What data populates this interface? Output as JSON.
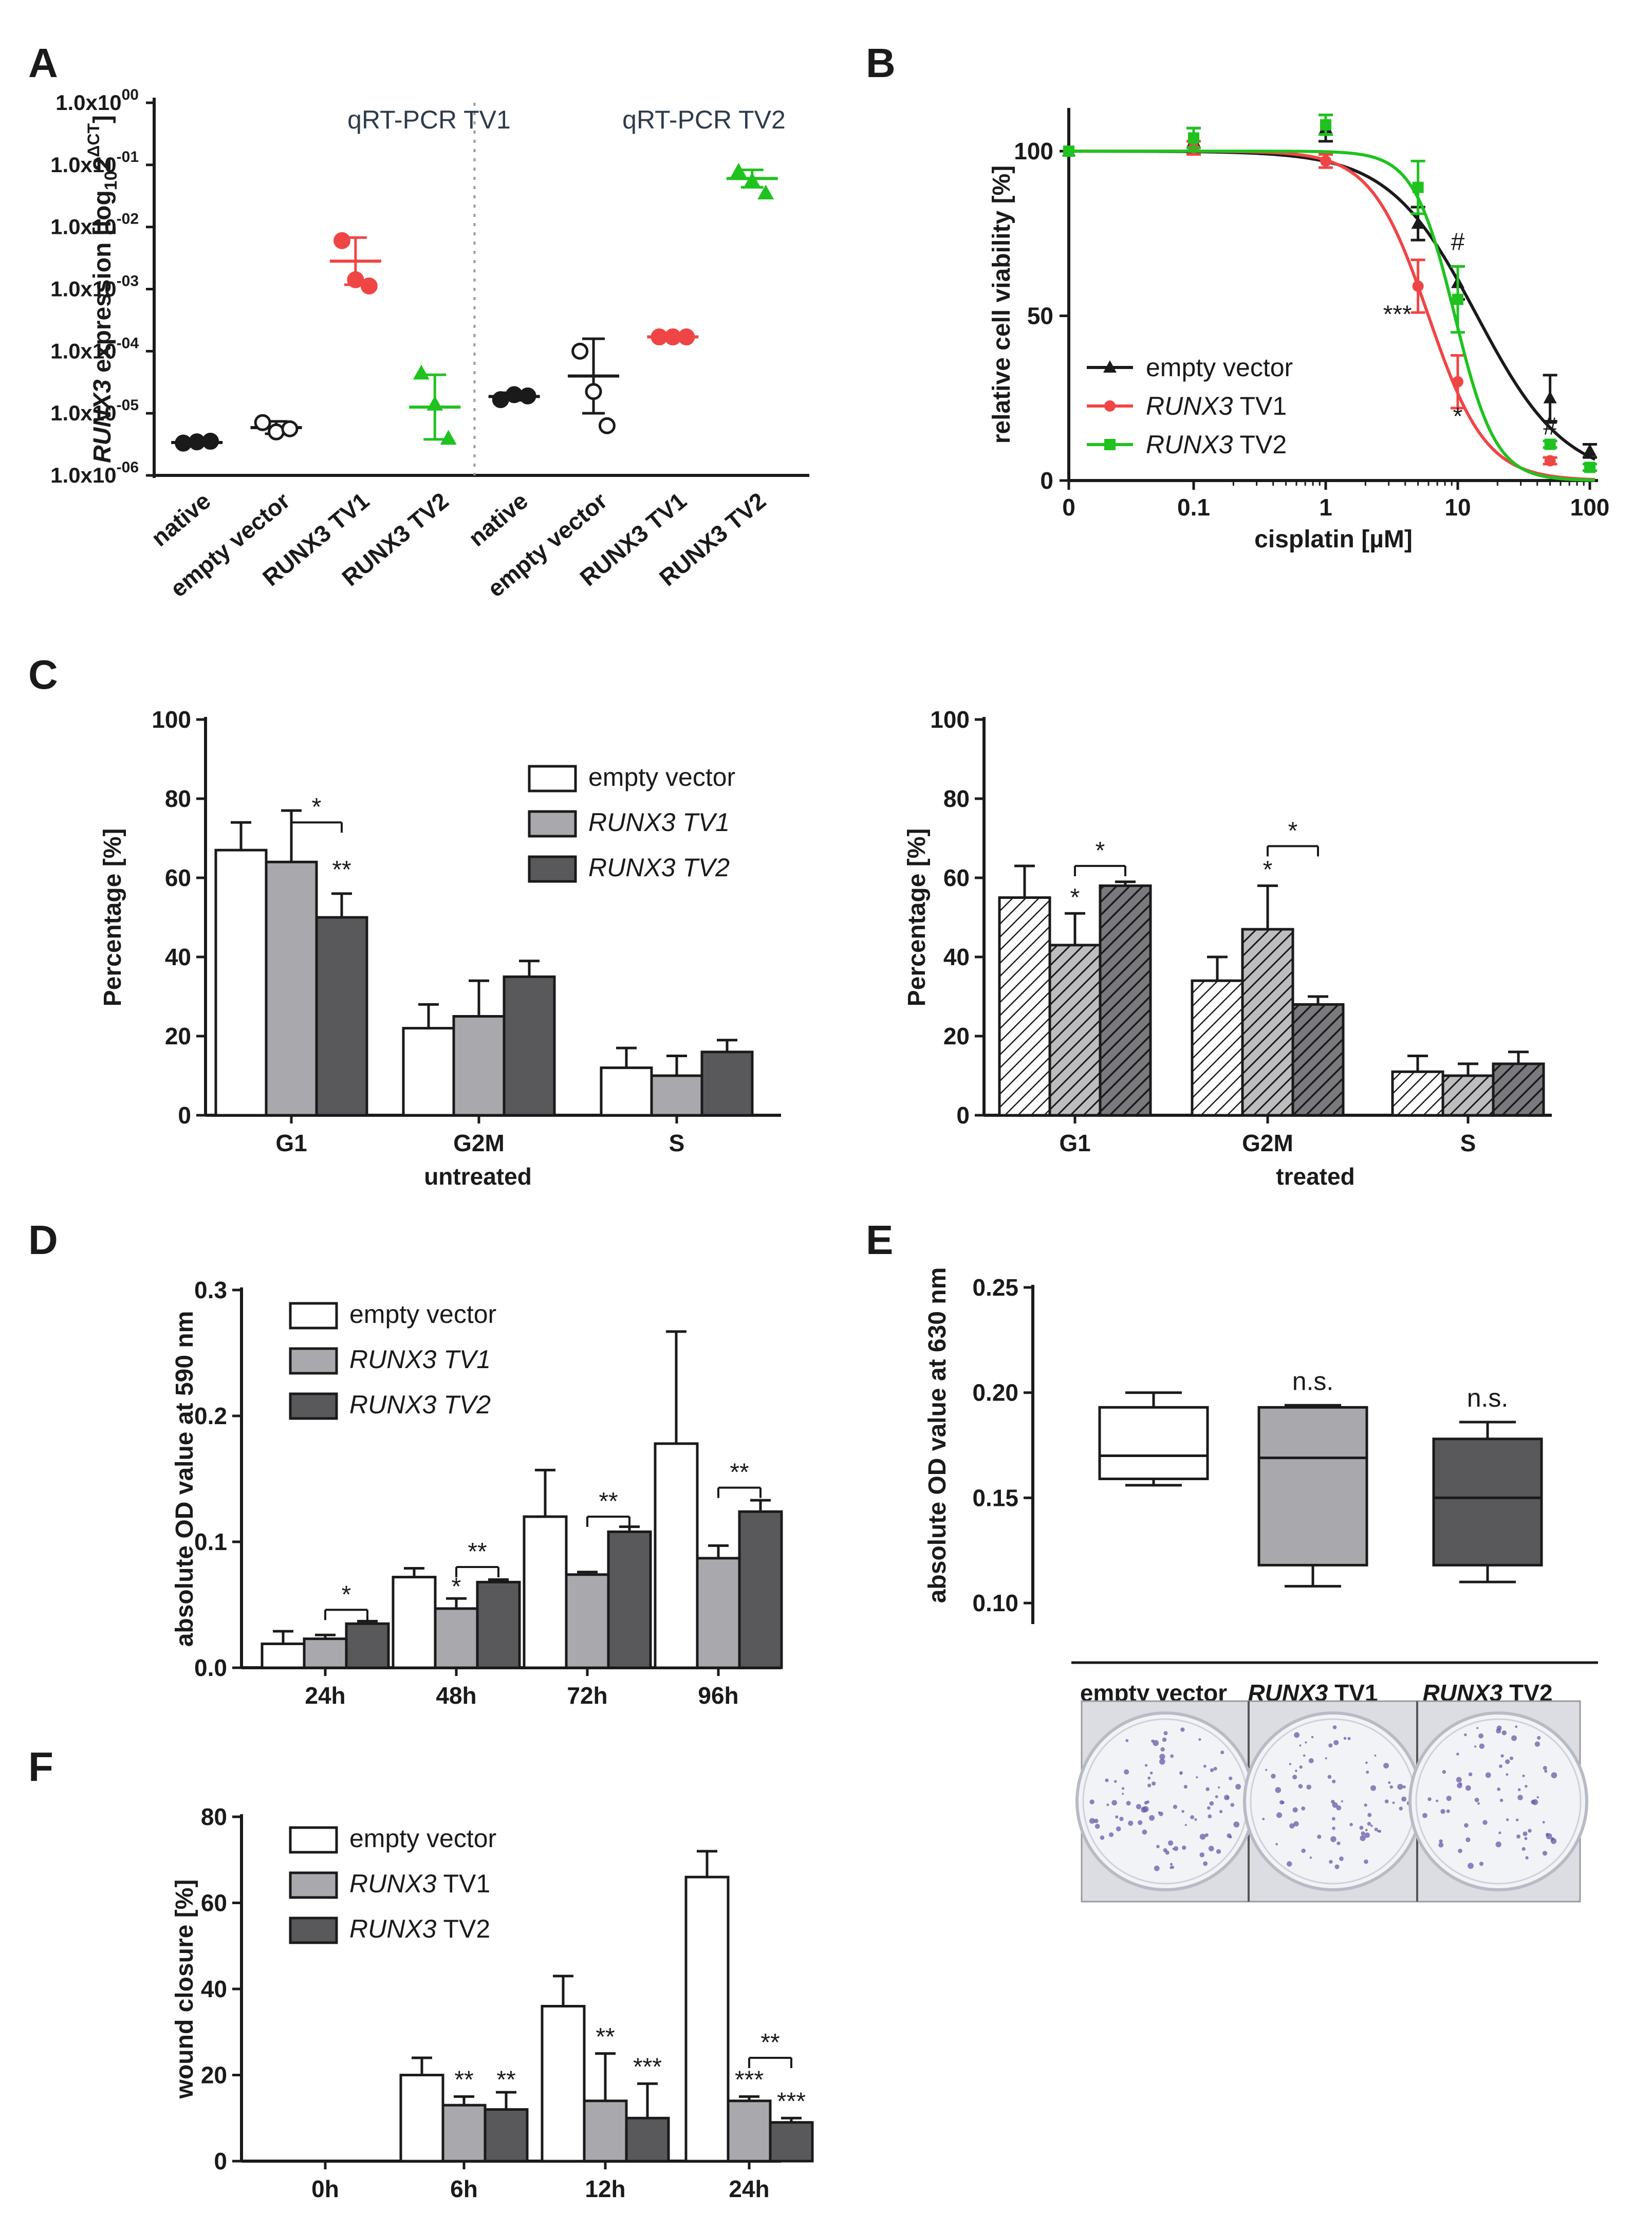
{
  "colors": {
    "black": "#1a1a1a",
    "red": "#f04545",
    "green": "#1fc21f",
    "white_bar": "#ffffff",
    "light_grey": "#a9a9ad",
    "dark_grey": "#59595c",
    "dish_bg": "#e8eaf0",
    "colony": "#6a5aa8"
  },
  "chart_data": [
    {
      "panel": "A",
      "type": "scatter",
      "ylabel_parts": [
        "RUNX3",
        " expression [log",
        "10",
        "2",
        "ΔCT",
        "]"
      ],
      "yticks": [
        "1.0x10",
        "1.0x10",
        "1.0x10",
        "1.0x10",
        "1.0x10",
        "1.0x10",
        "1.0x10"
      ],
      "ytick_exps": [
        "00",
        "-01",
        "-02",
        "-03",
        "-04",
        "-05",
        "-06"
      ],
      "ylim_log10": [
        -6,
        0
      ],
      "section_titles": [
        "qRT-PCR TV1",
        "qRT-PCR TV2"
      ],
      "categories": [
        "native",
        "empty vector",
        "RUNX3 TV1",
        "RUNX3 TV2",
        "native",
        "empty vector",
        "RUNX3 TV1",
        "RUNX3 TV2"
      ],
      "groups": [
        {
          "name": "native",
          "section": "TV1",
          "color": "black",
          "filled": true,
          "points_log10": [
            -5.48,
            -5.46,
            -5.45
          ],
          "mean_log10": -5.47,
          "sd_log10": 0.03
        },
        {
          "name": "empty vector",
          "section": "TV1",
          "color": "black",
          "filled": false,
          "points_log10": [
            -5.15,
            -5.3,
            -5.25
          ],
          "mean_log10": -5.23,
          "sd_log10": 0.1
        },
        {
          "name": "RUNX3 TV1",
          "section": "TV1",
          "color": "red",
          "filled": true,
          "points_log10": [
            -2.22,
            -2.85,
            -2.95
          ],
          "mean_log10": -2.55,
          "sd_log10": 0.38
        },
        {
          "name": "RUNX3 TV2",
          "section": "TV1",
          "color": "green",
          "filled": true,
          "points_log10": [
            -4.35,
            -4.85,
            -5.4
          ],
          "mean_log10": -4.9,
          "sd_log10": 0.52
        },
        {
          "name": "native",
          "section": "TV2",
          "color": "black",
          "filled": true,
          "points_log10": [
            -4.78,
            -4.7,
            -4.72
          ],
          "mean_log10": -4.73,
          "sd_log10": 0.06
        },
        {
          "name": "empty vector",
          "section": "TV2",
          "color": "black",
          "filled": false,
          "points_log10": [
            -4.0,
            -4.65,
            -5.2
          ],
          "mean_log10": -4.4,
          "sd_log10": 0.6
        },
        {
          "name": "RUNX3 TV1",
          "section": "TV2",
          "color": "red",
          "filled": true,
          "points_log10": [
            -3.77,
            -3.77,
            -3.77
          ],
          "mean_log10": -3.77,
          "sd_log10": 0.02
        },
        {
          "name": "RUNX3 TV2",
          "section": "TV2",
          "color": "green",
          "filled": true,
          "points_log10": [
            -1.1,
            -1.25,
            -1.45
          ],
          "mean_log10": -1.22,
          "sd_log10": 0.14
        }
      ]
    },
    {
      "panel": "B",
      "type": "line",
      "xlabel": "cisplatin [µM]",
      "ylabel": "relative cell viability [%]",
      "xticks": [
        "0",
        "0.1",
        "1",
        "10",
        "100"
      ],
      "yticks": [
        "0",
        "50",
        "100"
      ],
      "ylim": [
        0,
        110
      ],
      "series": [
        {
          "name": "empty vector",
          "italic_prefix": "",
          "color": "black",
          "marker": "triangle",
          "x": [
            0,
            0.1,
            1,
            5,
            10,
            50,
            100
          ],
          "y": [
            100,
            103,
            107,
            78,
            60,
            25,
            9
          ],
          "err": [
            0,
            4,
            4,
            5,
            5,
            7,
            2
          ],
          "ic50": 14,
          "hill": 1.3
        },
        {
          "name": "TV1",
          "italic_prefix": "RUNX3",
          "color": "red",
          "marker": "circle",
          "x": [
            0,
            0.1,
            1,
            5,
            10,
            50
          ],
          "y": [
            100,
            101,
            97,
            59,
            30,
            6
          ],
          "err": [
            0,
            2,
            2,
            8,
            8,
            1
          ],
          "ic50": 6,
          "hill": 2
        },
        {
          "name": "TV2",
          "italic_prefix": "RUNX3",
          "color": "green",
          "marker": "square",
          "x": [
            0,
            0.1,
            1,
            5,
            10,
            50,
            100
          ],
          "y": [
            100,
            104,
            108,
            89,
            55,
            11,
            4
          ],
          "err": [
            0,
            3,
            3,
            8,
            10,
            1,
            1
          ],
          "ic50": 9.5,
          "hill": 2.8
        }
      ],
      "annotations": [
        {
          "text": "***",
          "x": 5,
          "y": 48
        },
        {
          "text": "*",
          "x": 10,
          "y": 17
        },
        {
          "text": "#",
          "x": 10,
          "y": 70
        },
        {
          "text": "#",
          "x": 50,
          "y": 14
        }
      ]
    },
    {
      "panel": "C-left",
      "type": "bar",
      "title": "untreated",
      "categories": [
        "G1",
        "G2M",
        "S"
      ],
      "ylabel": "Percentage [%]",
      "yticks": [
        "0",
        "20",
        "40",
        "60",
        "80",
        "100"
      ],
      "ylim": [
        0,
        100
      ],
      "series": [
        {
          "name": "empty vector",
          "italic": false,
          "fill": "white_bar",
          "values": [
            67,
            22,
            12
          ],
          "err": [
            7,
            6,
            5
          ]
        },
        {
          "name": "RUNX3 TV1",
          "italic": true,
          "fill": "light_grey",
          "values": [
            64,
            25,
            10
          ],
          "err": [
            13,
            9,
            5
          ]
        },
        {
          "name": "RUNX3 TV2",
          "italic": true,
          "fill": "dark_grey",
          "values": [
            50,
            35,
            16
          ],
          "err": [
            6,
            4,
            3
          ]
        }
      ],
      "annotations": [
        {
          "text": "**",
          "category": 0,
          "series": 2,
          "y": 60
        },
        {
          "bracket": [
            1,
            2
          ],
          "category": 0,
          "y": 74,
          "text": "*"
        }
      ]
    },
    {
      "panel": "C-right",
      "type": "bar",
      "title": "treated",
      "categories": [
        "G1",
        "G2M",
        "S"
      ],
      "ylabel": "Percentage [%]",
      "yticks": [
        "0",
        "20",
        "40",
        "60",
        "80",
        "100"
      ],
      "ylim": [
        0,
        100
      ],
      "hatched": true,
      "series": [
        {
          "name": "empty vector",
          "fill": "white_bar",
          "values": [
            55,
            34,
            11
          ],
          "err": [
            8,
            6,
            4
          ]
        },
        {
          "name": "RUNX3 TV1",
          "fill": "light_grey",
          "values": [
            43,
            47,
            10
          ],
          "err": [
            8,
            11,
            3
          ]
        },
        {
          "name": "RUNX3 TV2",
          "fill": "dark_grey",
          "values": [
            58,
            28,
            13
          ],
          "err": [
            1,
            2,
            3
          ]
        }
      ],
      "annotations": [
        {
          "text": "*",
          "category": 0,
          "series": 1,
          "y": 53
        },
        {
          "bracket": [
            1,
            2
          ],
          "category": 0,
          "y": 63,
          "text": "*"
        },
        {
          "text": "*",
          "category": 1,
          "series": 1,
          "y": 60
        },
        {
          "bracket": [
            1,
            2
          ],
          "category": 1,
          "y": 68,
          "text": "*"
        }
      ]
    },
    {
      "panel": "D",
      "type": "bar",
      "categories": [
        "24h",
        "48h",
        "72h",
        "96h"
      ],
      "ylabel": "absolute OD value at 590 nm",
      "yticks": [
        "0.0",
        "0.1",
        "0.2",
        "0.3"
      ],
      "ylim": [
        0,
        0.3
      ],
      "series": [
        {
          "name": "empty vector",
          "italic": false,
          "fill": "white_bar",
          "values": [
            0.019,
            0.072,
            0.12,
            0.178
          ],
          "err": [
            0.01,
            0.007,
            0.037,
            0.089
          ]
        },
        {
          "name": "RUNX3 TV1",
          "italic": true,
          "fill": "light_grey",
          "values": [
            0.023,
            0.047,
            0.074,
            0.087
          ],
          "err": [
            0.003,
            0.008,
            0.002,
            0.01
          ]
        },
        {
          "name": "RUNX3 TV2",
          "italic": true,
          "fill": "dark_grey",
          "values": [
            0.035,
            0.068,
            0.108,
            0.124
          ],
          "err": [
            0.002,
            0.002,
            0.004,
            0.009
          ]
        }
      ],
      "annotations": [
        {
          "bracket": [
            1,
            2
          ],
          "category": 0,
          "y": 0.046,
          "text": "*"
        },
        {
          "text": "*",
          "category": 1,
          "series": 1,
          "y": 0.058
        },
        {
          "bracket": [
            1,
            2
          ],
          "category": 1,
          "y": 0.08,
          "text": "**"
        },
        {
          "bracket": [
            1,
            2
          ],
          "category": 2,
          "y": 0.12,
          "text": "**"
        },
        {
          "bracket": [
            1,
            2
          ],
          "category": 3,
          "y": 0.143,
          "text": "**"
        }
      ]
    },
    {
      "panel": "E",
      "type": "box",
      "ylabel": "absolute OD value at 630 nm",
      "yticks": [
        "0.10",
        "0.15",
        "0.20",
        "0.25"
      ],
      "ylim": [
        0.09,
        0.25
      ],
      "categories": [
        "empty vector",
        "TV1",
        "TV2"
      ],
      "italic_prefixes": [
        "",
        "RUNX3",
        "RUNX3"
      ],
      "boxes": [
        {
          "fill": "white_bar",
          "min": 0.156,
          "q1": 0.159,
          "median": 0.17,
          "q3": 0.193,
          "max": 0.2,
          "label": ""
        },
        {
          "fill": "light_grey",
          "min": 0.108,
          "q1": 0.118,
          "median": 0.169,
          "q3": 0.193,
          "max": 0.194,
          "label": "n.s."
        },
        {
          "fill": "dark_grey",
          "min": 0.11,
          "q1": 0.118,
          "median": 0.15,
          "q3": 0.178,
          "max": 0.186,
          "label": "n.s."
        }
      ]
    },
    {
      "panel": "F",
      "type": "bar",
      "categories": [
        "0h",
        "6h",
        "12h",
        "24h"
      ],
      "ylabel": "wound closure [%]",
      "yticks": [
        "0",
        "20",
        "40",
        "60",
        "80"
      ],
      "ylim": [
        0,
        80
      ],
      "series": [
        {
          "name": "empty vector",
          "italic_prefix": "",
          "label": "empty vector",
          "fill": "white_bar",
          "values": [
            0,
            20,
            36,
            66
          ],
          "err": [
            0,
            4,
            7,
            6
          ]
        },
        {
          "name": "RUNX3 TV1",
          "italic_prefix": "RUNX3",
          "label": " TV1",
          "fill": "light_grey",
          "values": [
            0,
            13,
            14,
            14
          ],
          "err": [
            0,
            2,
            11,
            1
          ]
        },
        {
          "name": "RUNX3 TV2",
          "italic_prefix": "RUNX3",
          "label": " TV2",
          "fill": "dark_grey",
          "values": [
            0,
            12,
            10,
            9
          ],
          "err": [
            0,
            4,
            8,
            1
          ]
        }
      ],
      "annotations": [
        {
          "text": "**",
          "category": 1,
          "series": 1,
          "y": 17
        },
        {
          "text": "**",
          "category": 1,
          "series": 2,
          "y": 17
        },
        {
          "text": "**",
          "category": 2,
          "series": 1,
          "y": 27
        },
        {
          "text": "***",
          "category": 2,
          "series": 2,
          "y": 20
        },
        {
          "text": "***",
          "category": 3,
          "series": 1,
          "y": 17
        },
        {
          "text": "***",
          "category": 3,
          "series": 2,
          "y": 12
        },
        {
          "bracket": [
            1,
            2
          ],
          "category": 3,
          "y": 24,
          "text": "**"
        }
      ]
    }
  ],
  "panel_letters": [
    "A",
    "B",
    "C",
    "D",
    "E",
    "F"
  ],
  "legend_common": {
    "empty": "empty vector",
    "tv1": "RUNX3 TV1",
    "tv2": "RUNX3 TV2",
    "runx3": "RUNX3",
    "tv1_plain": " TV1",
    "tv2_plain": " TV2"
  }
}
